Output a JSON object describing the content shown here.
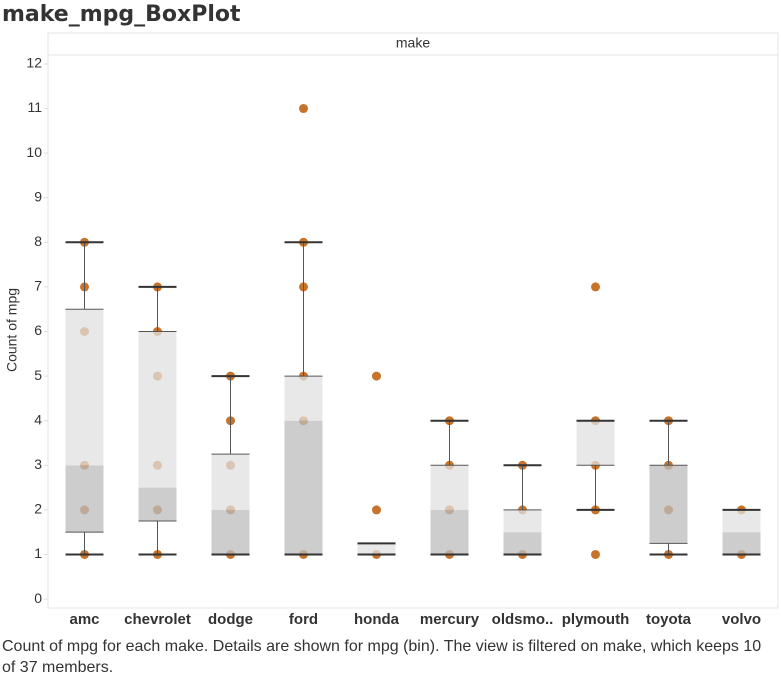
{
  "chart_data": {
    "type": "boxplot",
    "title": "make_mpg_BoxPlot",
    "x_label": "make",
    "y_label": "Count of mpg",
    "caption": "Count of mpg for each make.  Details are shown for mpg (bin). The view is filtered on make, which keeps 10 of 37 members.",
    "categories": [
      "amc",
      "chevrolet",
      "dodge",
      "ford",
      "honda",
      "mercury",
      "oldsmo..",
      "plymouth",
      "toyota",
      "volvo"
    ],
    "points": [
      [
        1,
        2,
        3,
        6,
        7,
        8
      ],
      [
        1,
        2,
        3,
        5,
        6,
        7
      ],
      [
        1,
        2,
        3,
        4,
        5
      ],
      [
        1,
        4,
        5,
        7,
        8,
        11
      ],
      [
        1,
        2,
        5
      ],
      [
        1,
        2,
        3,
        4
      ],
      [
        1,
        2,
        3
      ],
      [
        1,
        2,
        3,
        4,
        7
      ],
      [
        1,
        2,
        3,
        4
      ],
      [
        1,
        2
      ]
    ],
    "boxes": [
      {
        "min": 1,
        "q1": 1.5,
        "median": 3,
        "q3": 6.5,
        "max": 8
      },
      {
        "min": 1,
        "q1": 1.75,
        "median": 2.5,
        "q3": 6,
        "max": 7
      },
      {
        "min": 1,
        "q1": 1,
        "median": 2,
        "q3": 3.25,
        "max": 5
      },
      {
        "min": 1,
        "q1": 1,
        "median": 4,
        "q3": 5,
        "max": 8
      },
      {
        "min": 1,
        "q1": 1,
        "median": 1,
        "q3": 1.25,
        "max": 1.25
      },
      {
        "min": 1,
        "q1": 1,
        "median": 2,
        "q3": 3,
        "max": 4
      },
      {
        "min": 1,
        "q1": 1,
        "median": 1.5,
        "q3": 2,
        "max": 3
      },
      {
        "min": 2,
        "q1": 3,
        "median": 3,
        "q3": 4,
        "max": 4
      },
      {
        "min": 1,
        "q1": 1.25,
        "median": 3,
        "q3": 3,
        "max": 4
      },
      {
        "min": 1,
        "q1": 1,
        "median": 1.5,
        "q3": 2,
        "max": 2
      }
    ],
    "color": "#c8732a",
    "box_colors": [
      "#bcbcbc",
      "#e0e0e0"
    ],
    "ylim": [
      -0.2,
      12.2
    ],
    "yticks": [
      0,
      1,
      2,
      3,
      4,
      5,
      6,
      7,
      8,
      9,
      10,
      11,
      12
    ]
  }
}
